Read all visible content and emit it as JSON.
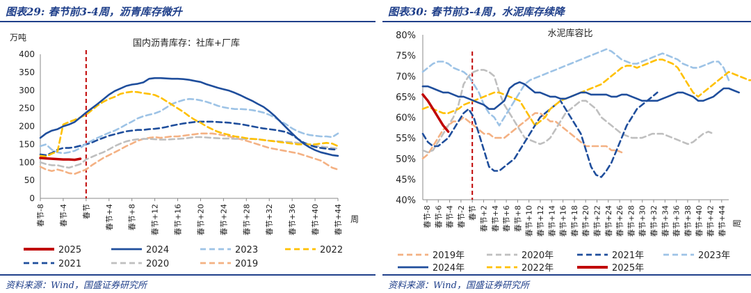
{
  "left": {
    "panel_title": "图表29: 春节前3-4周，沥青库存微升",
    "source": "资料来源：Wind，国盛证券研究所"
  },
  "right": {
    "panel_title": "图表30: 春节前3-4周，水泥库存续降",
    "source": "资料来源：Wind，国盛证券研究所"
  },
  "colors": {
    "2019": "#f4b183",
    "2020": "#bfbfbf",
    "2021": "#1f4e9c",
    "2022": "#ffc000",
    "2023": "#9dc3e6",
    "2024": "#1f4e9c",
    "2025": "#c00000",
    "spring_line": "#c00000",
    "title_blue": "#1f3f8a"
  },
  "chart_data": [
    {
      "id": "asphalt",
      "type": "line",
      "title": "国内沥青库存：社库+厂库",
      "unit_label": "万吨",
      "xlabel": "周",
      "ylim": [
        0,
        400
      ],
      "yticks": [
        0,
        50,
        100,
        150,
        200,
        250,
        300,
        350,
        400
      ],
      "spring_index": 8,
      "x_ticks": [
        {
          "i": 0,
          "label": "春节-8"
        },
        {
          "i": 4,
          "label": "春节-4"
        },
        {
          "i": 8,
          "label": "春节"
        },
        {
          "i": 12,
          "label": "春节+4"
        },
        {
          "i": 16,
          "label": "春节+8"
        },
        {
          "i": 20,
          "label": "春节+12"
        },
        {
          "i": 24,
          "label": "春节+16"
        },
        {
          "i": 28,
          "label": "春节+20"
        },
        {
          "i": 32,
          "label": "春节+24"
        },
        {
          "i": 36,
          "label": "春节+28"
        },
        {
          "i": 40,
          "label": "春节+32"
        },
        {
          "i": 44,
          "label": "春节+36"
        },
        {
          "i": 48,
          "label": "春节+40"
        },
        {
          "i": 52,
          "label": "春节+44"
        }
      ],
      "series": [
        {
          "name": "2025",
          "values": [
            112,
            111,
            110,
            109,
            108,
            108,
            107,
            110
          ]
        },
        {
          "name": "2024",
          "values": [
            168,
            180,
            188,
            192,
            200,
            205,
            212,
            225,
            238,
            250,
            262,
            275,
            288,
            298,
            305,
            312,
            316,
            318,
            322,
            332,
            334,
            334,
            333,
            332,
            332,
            331,
            329,
            326,
            323,
            317,
            312,
            307,
            303,
            299,
            293,
            286,
            278,
            271,
            262,
            254,
            242,
            228,
            212,
            196,
            180,
            165,
            152,
            142,
            134,
            128,
            124,
            120,
            118
          ]
        },
        {
          "name": "2023",
          "values": [
            145,
            150,
            135,
            128,
            125,
            128,
            132,
            140,
            152,
            160,
            168,
            175,
            182,
            188,
            196,
            205,
            213,
            222,
            228,
            232,
            236,
            242,
            252,
            262,
            268,
            273,
            276,
            275,
            272,
            268,
            263,
            257,
            253,
            250,
            248,
            248,
            247,
            245,
            242,
            238,
            232,
            224,
            214,
            205,
            194,
            186,
            180,
            176,
            174,
            172,
            172,
            170,
            180
          ]
        },
        {
          "name": "2022",
          "values": [
            118,
            116,
            124,
            130,
            205,
            212,
            218,
            225,
            232,
            245,
            258,
            268,
            276,
            282,
            290,
            294,
            296,
            295,
            292,
            290,
            287,
            280,
            270,
            260,
            250,
            240,
            228,
            218,
            210,
            200,
            192,
            185,
            180,
            176,
            172,
            170,
            167,
            165,
            164,
            162,
            160,
            158,
            156,
            154,
            152,
            150,
            150,
            150,
            150,
            152,
            154,
            152,
            145
          ]
        },
        {
          "name": "2021",
          "values": [
            122,
            120,
            126,
            135,
            140,
            140,
            142,
            146,
            150,
            155,
            162,
            168,
            174,
            178,
            182,
            186,
            188,
            190,
            190,
            192,
            193,
            195,
            198,
            202,
            205,
            208,
            210,
            212,
            213,
            213,
            213,
            212,
            211,
            210,
            208,
            206,
            203,
            200,
            197,
            194,
            192,
            190,
            187,
            184,
            176,
            165,
            155,
            148,
            143,
            140,
            138,
            136,
            135
          ]
        },
        {
          "name": "2020",
          "values": [
            100,
            95,
            92,
            92,
            88,
            85,
            90,
            95,
            108,
            115,
            122,
            128,
            136,
            145,
            152,
            158,
            162,
            164,
            165,
            165,
            164,
            163,
            163,
            164,
            165,
            166,
            168,
            170,
            170,
            169,
            168,
            167,
            166,
            166,
            165,
            165,
            165,
            165,
            164,
            162,
            160,
            159,
            158,
            157,
            156,
            154,
            152,
            149,
            146,
            144,
            142,
            140,
            138
          ]
        },
        {
          "name": "2019",
          "values": [
            88,
            80,
            76,
            80,
            76,
            70,
            68,
            74,
            80,
            92,
            102,
            112,
            120,
            128,
            136,
            145,
            152,
            160,
            165,
            168,
            170,
            168,
            170,
            172,
            172,
            174,
            176,
            178,
            180,
            180,
            180,
            178,
            175,
            172,
            168,
            164,
            160,
            155,
            150,
            145,
            140,
            137,
            134,
            131,
            128,
            125,
            120,
            115,
            110,
            105,
            95,
            85,
            80
          ]
        }
      ]
    },
    {
      "id": "cement",
      "type": "line",
      "title": "水泥库容比",
      "xlabel": "周",
      "ylim": [
        40,
        80
      ],
      "yticks": [
        "40%",
        "45%",
        "50%",
        "55%",
        "60%",
        "65%",
        "70%",
        "75%",
        "80%"
      ],
      "spring_index": 8,
      "x_ticks": [
        {
          "i": 0,
          "label": "春节-8"
        },
        {
          "i": 1,
          "label": "春节-6"
        },
        {
          "i": 2,
          "label": "春节-4"
        },
        {
          "i": 3,
          "label": "春节-2"
        },
        {
          "i": 4,
          "label": "春节"
        },
        {
          "i": 5,
          "label": "春节+2"
        },
        {
          "i": 6,
          "label": "春节+4"
        },
        {
          "i": 7,
          "label": "春节+6"
        },
        {
          "i": 8,
          "label": "春节+8"
        },
        {
          "i": 9,
          "label": "春节+10"
        },
        {
          "i": 10,
          "label": "春节+12"
        },
        {
          "i": 11,
          "label": "春节+14"
        },
        {
          "i": 12,
          "label": "春节+16"
        },
        {
          "i": 13,
          "label": "春节+18"
        },
        {
          "i": 14,
          "label": "春节+20"
        },
        {
          "i": 15,
          "label": "春节+22"
        },
        {
          "i": 16,
          "label": "春节+24"
        },
        {
          "i": 17,
          "label": "春节+26"
        },
        {
          "i": 18,
          "label": "春节+28"
        },
        {
          "i": 19,
          "label": "春节+30"
        },
        {
          "i": 20,
          "label": "春节+32"
        },
        {
          "i": 21,
          "label": "春节+34"
        },
        {
          "i": 22,
          "label": "春节+36"
        },
        {
          "i": 23,
          "label": "春节+38"
        },
        {
          "i": 24,
          "label": "春节+40"
        },
        {
          "i": 25,
          "label": "春节+42"
        },
        {
          "i": 26,
          "label": "春节+44"
        }
      ],
      "legend": [
        "2019年",
        "2020年",
        "2021年",
        "2023年",
        "2024年",
        "2022年",
        "2025年"
      ],
      "series": [
        {
          "name": "2019年",
          "values": [
            50,
            51,
            53,
            55,
            57,
            58,
            59,
            59,
            60,
            59,
            58,
            57,
            56,
            56,
            55,
            55,
            55,
            56,
            57,
            58,
            59,
            60,
            61,
            61,
            60,
            59,
            59,
            58,
            57,
            56,
            55,
            54,
            53,
            53,
            53,
            53,
            53,
            52,
            52,
            51.5
          ]
        },
        {
          "name": "2020年",
          "values": [
            52,
            51.5,
            52,
            54,
            56,
            58,
            60,
            63,
            68,
            70,
            71,
            71.5,
            71.5,
            71,
            70,
            66,
            63,
            61,
            59,
            57,
            55,
            54.5,
            54,
            53.5,
            54,
            55,
            57,
            59,
            61,
            62,
            63,
            64,
            64,
            63,
            62,
            60,
            59,
            58,
            57,
            56,
            55.5,
            55,
            55,
            55,
            55.5,
            56,
            56,
            56,
            55.5,
            55,
            54.5,
            54,
            53.5,
            54,
            55,
            56,
            56.5,
            56
          ]
        },
        {
          "name": "2021年",
          "values": [
            56,
            54,
            53,
            53,
            54,
            55,
            57,
            59,
            61,
            62,
            60,
            56,
            52,
            48,
            47,
            47,
            48,
            49,
            50,
            52,
            54,
            56,
            58,
            60,
            61,
            62,
            63,
            64,
            62,
            60,
            58,
            56,
            52,
            48,
            46,
            45.5,
            47,
            49,
            52,
            55,
            58,
            60,
            62,
            63,
            64,
            65,
            66
          ]
        },
        {
          "name": "2023年",
          "values": [
            71,
            72,
            73,
            73.5,
            73.5,
            73,
            72,
            71.5,
            71,
            70,
            68,
            66,
            63,
            61,
            60,
            58,
            60,
            62,
            64,
            66,
            68,
            69,
            69.5,
            70,
            70.5,
            71,
            71.5,
            72,
            72.5,
            73,
            73.5,
            74,
            74.5,
            75,
            75.5,
            76,
            76.5,
            76,
            75,
            74,
            73.5,
            73,
            73,
            73.5,
            74,
            74.5,
            75,
            75.5,
            75,
            74.5,
            74,
            73,
            72.5,
            72,
            72,
            72.5,
            73,
            73.5,
            73.5,
            72,
            69
          ]
        },
        {
          "name": "2024年",
          "values": [
            67.5,
            67.5,
            67,
            66.5,
            66,
            66,
            65.5,
            65,
            65,
            64.5,
            64,
            63.5,
            63,
            62,
            62,
            63,
            64,
            67,
            68,
            68.5,
            68,
            67,
            66,
            66,
            65.5,
            65,
            65,
            64.5,
            64.5,
            65,
            65.5,
            66,
            66,
            65.5,
            65.5,
            65.5,
            65.5,
            65,
            65,
            65.5,
            65.5,
            65,
            64.5,
            64,
            64,
            64,
            64,
            64.5,
            65,
            65.5,
            66,
            66,
            65.5,
            65,
            64,
            64,
            64.5,
            65,
            66,
            67,
            67,
            66.5,
            66
          ]
        },
        {
          "name": "2022年",
          "values": [
            62,
            62.5,
            62,
            61.5,
            61,
            61,
            61.5,
            62,
            63,
            63.5,
            64,
            64.5,
            65,
            65.5,
            66,
            66,
            65.5,
            65,
            64.5,
            64,
            62,
            60,
            58,
            59,
            60,
            62,
            63,
            64,
            64.5,
            65,
            65.5,
            66,
            66.5,
            67,
            67.5,
            68,
            69,
            70,
            71,
            72,
            72.5,
            72.5,
            72,
            72.5,
            73,
            73.5,
            74,
            74,
            73.5,
            73,
            72,
            70,
            68,
            66,
            65,
            66,
            67,
            68,
            69,
            70,
            71,
            70.5,
            70,
            69.5,
            69,
            69,
            69.5,
            70
          ]
        },
        {
          "name": "2025年",
          "values": [
            65.5,
            64,
            62,
            60,
            58,
            56.5
          ]
        }
      ]
    }
  ]
}
